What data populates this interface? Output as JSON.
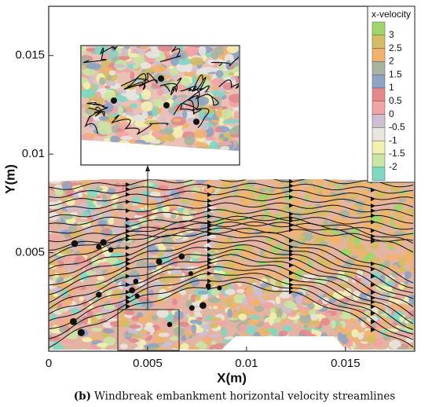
{
  "chart_data": {
    "type": "contour",
    "x_label": "X(m)",
    "y_label": "Y(m)",
    "xlim": [
      0,
      0.0185
    ],
    "ylim": [
      0,
      0.0175
    ],
    "xticks": [
      0,
      0.005,
      0.01,
      0.015
    ],
    "yticks": [
      0.005,
      0.01,
      0.015
    ],
    "legend": {
      "title": "x-velocity",
      "levels": [
        3,
        2.5,
        2,
        1.5,
        1,
        0.5,
        0,
        -0.5,
        -1,
        -1.5,
        -2
      ],
      "colors": [
        "#9fd66b",
        "#d4bd63",
        "#f2b26d",
        "#aab3a0",
        "#8fa3c4",
        "#e3888d",
        "#f2a4a4",
        "#cdbfd0",
        "#e8e6e0",
        "#f3f1b0",
        "#c9e6a5",
        "#7fd8c3"
      ]
    },
    "caption": {
      "label": "(b)",
      "text": "Windbreak embankment horizontal velocity streamlines"
    }
  }
}
